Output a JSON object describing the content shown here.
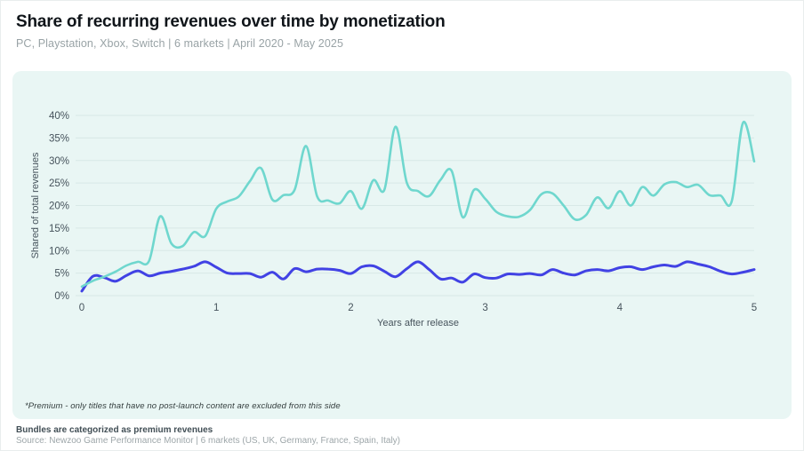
{
  "header": {
    "title": "Share of recurring revenues over time by monetization",
    "subtitle": "PC, Playstation, Xbox, Switch | 6 markets | April 2020 - May 2025"
  },
  "panel": {
    "background_color": "#e9f6f4",
    "footnote": "*Premium - only titles that have no post-launch content are excluded from this side"
  },
  "footer": {
    "note": "Bundles are categorized as premium revenues",
    "source": "Source: Newzoo Game Performance Monitor | 6 markets (US, UK, Germany, France, Spain, Italy)"
  },
  "chart_data": {
    "type": "line",
    "title": "",
    "xlabel": "Years after release",
    "ylabel": "Shared of total revenues",
    "xlim": [
      0,
      5
    ],
    "ylim": [
      0,
      40
    ],
    "grid": "horizontal",
    "legend": "none",
    "grid_color": "#d8e8e6",
    "axis_text_color": "#46535c",
    "x_tick_values": [
      0,
      1,
      2,
      3,
      4,
      5
    ],
    "x_tick_labels": [
      "0",
      "1",
      "2",
      "3",
      "4",
      "5"
    ],
    "y_tick_values": [
      0,
      5,
      10,
      15,
      20,
      25,
      30,
      35,
      40
    ],
    "y_tick_labels": [
      "0%",
      "5%",
      "10%",
      "15%",
      "20%",
      "25%",
      "30%",
      "35%",
      "40%"
    ],
    "x_years": [
      0,
      0.083,
      0.167,
      0.25,
      0.333,
      0.417,
      0.5,
      0.583,
      0.667,
      0.75,
      0.833,
      0.917,
      1,
      1.083,
      1.167,
      1.25,
      1.333,
      1.417,
      1.5,
      1.583,
      1.667,
      1.75,
      1.833,
      1.917,
      2,
      2.083,
      2.167,
      2.25,
      2.333,
      2.417,
      2.5,
      2.583,
      2.667,
      2.75,
      2.833,
      2.917,
      3,
      3.083,
      3.167,
      3.25,
      3.333,
      3.417,
      3.5,
      3.583,
      3.667,
      3.75,
      3.833,
      3.917,
      4,
      4.083,
      4.167,
      4.25,
      4.333,
      4.417,
      4.5,
      4.583,
      4.667,
      4.75,
      4.833,
      4.917,
      5
    ],
    "series": [
      {
        "name": "blue-line",
        "color": "#4142e4",
        "stroke_width": 3,
        "values": [
          1.0,
          4.3,
          4.0,
          3.2,
          4.5,
          5.5,
          4.4,
          5.0,
          5.4,
          5.9,
          6.5,
          7.5,
          6.3,
          5.0,
          4.9,
          4.9,
          4.1,
          5.2,
          3.7,
          6.0,
          5.3,
          5.9,
          5.9,
          5.6,
          4.9,
          6.4,
          6.6,
          5.4,
          4.2,
          6.0,
          7.5,
          5.8,
          3.7,
          3.9,
          3.0,
          4.8,
          4.0,
          3.9,
          4.8,
          4.7,
          4.9,
          4.6,
          5.8,
          5.0,
          4.6,
          5.5,
          5.8,
          5.5,
          6.2,
          6.4,
          5.8,
          6.4,
          6.8,
          6.5,
          7.5,
          7.0,
          6.4,
          5.4,
          4.8,
          5.2,
          5.8
        ]
      },
      {
        "name": "teal-line",
        "color": "#6fd7ce",
        "stroke_width": 2.6,
        "values": [
          2.0,
          3.3,
          4.2,
          5.3,
          6.7,
          7.5,
          7.7,
          17.6,
          11.5,
          11.0,
          14.1,
          13.2,
          19.3,
          20.9,
          22.0,
          25.4,
          28.3,
          21.3,
          22.3,
          23.5,
          33.2,
          22.0,
          21.1,
          20.5,
          23.2,
          19.3,
          25.6,
          23.5,
          37.5,
          25.0,
          23.2,
          22.1,
          25.7,
          27.7,
          17.4,
          23.5,
          21.5,
          18.6,
          17.6,
          17.5,
          19.0,
          22.5,
          22.7,
          20.0,
          16.9,
          17.9,
          21.8,
          19.4,
          23.2,
          20.0,
          24.1,
          22.2,
          24.7,
          25.2,
          24.1,
          24.6,
          22.3,
          22.2,
          20.9,
          38.4,
          29.8
        ]
      }
    ]
  }
}
